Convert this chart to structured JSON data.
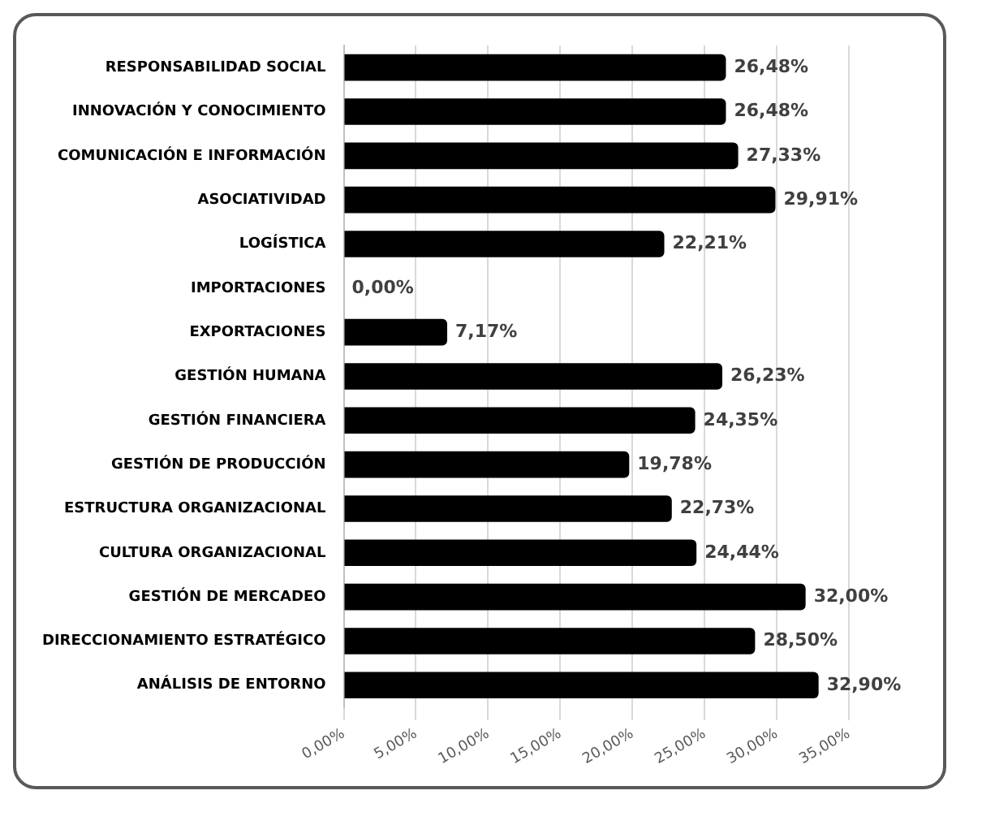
{
  "chart_data": {
    "type": "bar",
    "orientation": "horizontal",
    "categories": [
      "RESPONSABILIDAD SOCIAL",
      "INNOVACIÓN Y CONOCIMIENTO",
      "COMUNICACIÓN E INFORMACIÓN",
      "ASOCIATIVIDAD",
      "LOGÍSTICA",
      "IMPORTACIONES",
      "EXPORTACIONES",
      "GESTIÓN HUMANA",
      "GESTIÓN FINANCIERA",
      "GESTIÓN DE PRODUCCIÓN",
      "ESTRUCTURA ORGANIZACIONAL",
      "CULTURA ORGANIZACIONAL",
      "GESTIÓN DE MERCADEO",
      "DIRECCIONAMIENTO ESTRATÉGICO",
      "ANÁLISIS DE ENTORNO"
    ],
    "values": [
      26.48,
      26.48,
      27.33,
      29.91,
      22.21,
      0.0,
      7.17,
      26.23,
      24.35,
      19.78,
      22.73,
      24.44,
      32.0,
      28.5,
      32.9
    ],
    "value_labels": [
      "26,48%",
      "26,48%",
      "27,33%",
      "29,91%",
      "22,21%",
      "0,00%",
      "7,17%",
      "26,23%",
      "24,35%",
      "19,78%",
      "22,73%",
      "24,44%",
      "32,00%",
      "28,50%",
      "32,90%"
    ],
    "color": "#000000",
    "xlim": [
      0,
      35
    ],
    "xticks": [
      {
        "value": 0,
        "label": "0,00%"
      },
      {
        "value": 5,
        "label": "5,00%"
      },
      {
        "value": 10,
        "label": "10,00%"
      },
      {
        "value": 15,
        "label": "15,00%"
      },
      {
        "value": 20,
        "label": "20,00%"
      },
      {
        "value": 25,
        "label": "25,00%"
      },
      {
        "value": 30,
        "label": "30,00%"
      },
      {
        "value": 35,
        "label": "35,00%"
      }
    ],
    "grid": "x"
  }
}
